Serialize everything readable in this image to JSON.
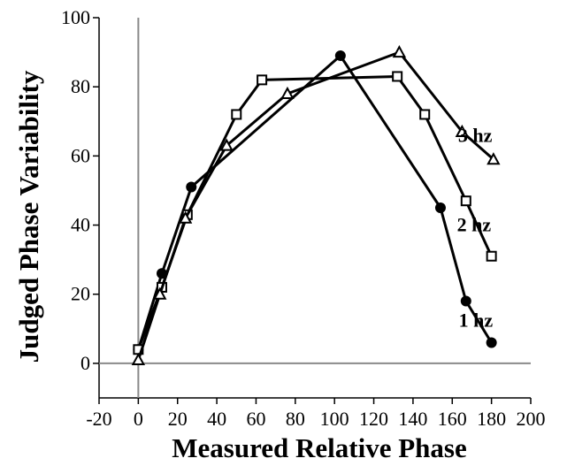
{
  "chart_data": {
    "type": "line",
    "xlabel": "Measured Relative Phase",
    "ylabel": "Judged Phase Variability",
    "xlim": [
      -20,
      200
    ],
    "ylim": [
      -10,
      100
    ],
    "x_ticks": [
      -20,
      0,
      20,
      40,
      60,
      80,
      100,
      120,
      140,
      160,
      180,
      200
    ],
    "y_ticks": [
      0,
      20,
      40,
      60,
      80,
      100
    ],
    "grid": false,
    "series": [
      {
        "name": "1 hz",
        "marker": "filled-circle",
        "x": [
          0,
          12,
          27,
          103,
          154,
          167,
          180
        ],
        "y": [
          4,
          26,
          51,
          89,
          45,
          18,
          6
        ]
      },
      {
        "name": "2 hz",
        "marker": "open-square",
        "x": [
          0,
          12,
          25,
          50,
          63,
          132,
          146,
          167,
          180
        ],
        "y": [
          4,
          22,
          43,
          72,
          82,
          83,
          72,
          47,
          31
        ]
      },
      {
        "name": "3 hz",
        "marker": "open-triangle",
        "x": [
          0,
          11,
          24,
          45,
          76,
          133,
          165,
          181
        ],
        "y": [
          1,
          20,
          42,
          63,
          78,
          90,
          67,
          59
        ]
      }
    ]
  }
}
